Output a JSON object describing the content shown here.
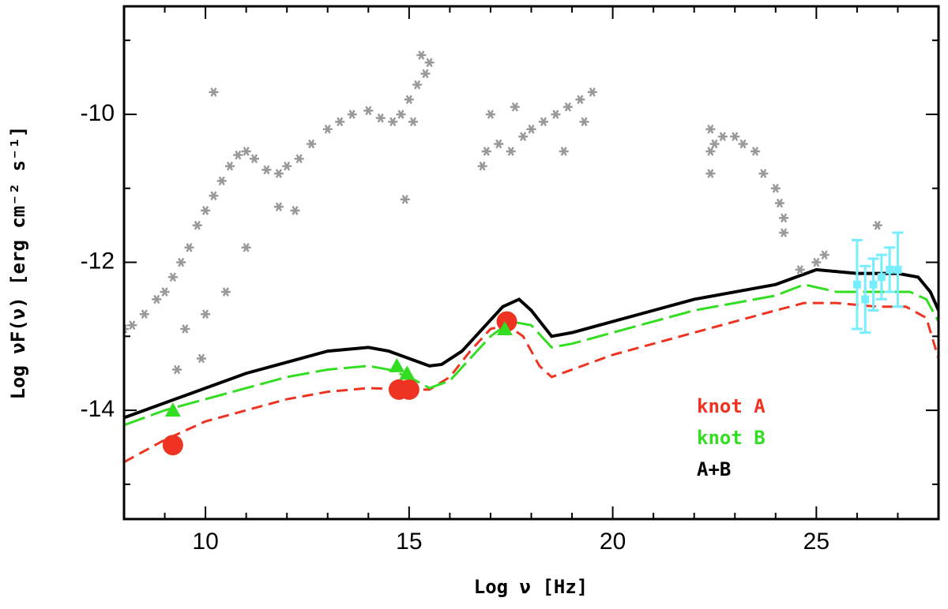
{
  "chart_data": {
    "type": "scatter",
    "xlabel": "Log ν [Hz]",
    "ylabel": "Log νF(ν) [erg cm⁻² s⁻¹]",
    "xlim": [
      8,
      28
    ],
    "ylim": [
      -15.47,
      -8.54
    ],
    "xticks": [
      10,
      15,
      20,
      25
    ],
    "yticks": [
      -14,
      -12,
      -10
    ],
    "xticks_minor": [
      9,
      11,
      12,
      13,
      14,
      16,
      17,
      18,
      19,
      21,
      22,
      23,
      24,
      26,
      27
    ],
    "yticks_minor": [
      -15,
      -13,
      -11,
      -9
    ],
    "legend": "lower right",
    "series": [
      {
        "name": "knot A",
        "color": "#ee3322",
        "style": "dashed",
        "x": [
          8,
          9,
          10,
          11,
          12,
          13,
          14,
          15,
          15.5,
          16,
          16.5,
          17,
          17.4,
          17.8,
          18.2,
          18.5,
          19,
          20,
          21,
          22,
          23,
          24,
          24.7,
          25.5,
          26.5,
          27.2,
          27.7,
          28
        ],
        "values": [
          -14.7,
          -14.4,
          -14.15,
          -14.0,
          -13.85,
          -13.75,
          -13.7,
          -13.72,
          -13.72,
          -13.55,
          -13.2,
          -12.9,
          -12.85,
          -13.0,
          -13.4,
          -13.55,
          -13.45,
          -13.25,
          -13.1,
          -12.95,
          -12.8,
          -12.65,
          -12.55,
          -12.55,
          -12.6,
          -12.6,
          -12.75,
          -13.3
        ]
      },
      {
        "name": "knot B",
        "color": "#33dd22",
        "style": "longdash",
        "x": [
          8,
          9,
          10,
          11,
          12,
          13,
          14,
          14.5,
          15,
          15.5,
          16,
          16.5,
          17,
          17.5,
          18,
          18.5,
          19,
          20,
          21,
          22,
          23,
          24,
          24.7,
          25.5,
          26.5,
          27.3,
          27.7,
          28
        ],
        "values": [
          -14.2,
          -14.0,
          -13.85,
          -13.7,
          -13.55,
          -13.45,
          -13.4,
          -13.45,
          -13.55,
          -13.7,
          -13.6,
          -13.3,
          -13.0,
          -12.8,
          -12.85,
          -13.15,
          -13.1,
          -12.95,
          -12.8,
          -12.65,
          -12.55,
          -12.45,
          -12.3,
          -12.4,
          -12.4,
          -12.4,
          -12.5,
          -12.8
        ]
      },
      {
        "name": "A+B",
        "color": "#000000",
        "style": "solid",
        "x": [
          8,
          9,
          10,
          11,
          12,
          13,
          14,
          14.5,
          15,
          15.5,
          15.8,
          16.3,
          16.8,
          17.3,
          17.7,
          18,
          18.5,
          19,
          20,
          21,
          22,
          23,
          24,
          24.5,
          25,
          26,
          27,
          27.5,
          27.8,
          28
        ],
        "values": [
          -14.1,
          -13.9,
          -13.7,
          -13.5,
          -13.35,
          -13.2,
          -13.15,
          -13.2,
          -13.3,
          -13.4,
          -13.38,
          -13.2,
          -12.9,
          -12.6,
          -12.5,
          -12.65,
          -13.0,
          -12.95,
          -12.8,
          -12.65,
          -12.5,
          -12.4,
          -12.3,
          -12.2,
          -12.1,
          -12.15,
          -12.15,
          -12.2,
          -12.4,
          -12.65
        ]
      },
      {
        "color": "#999999",
        "marker": "asterisk",
        "x": [
          8.0,
          8.2,
          8.5,
          8.8,
          9.0,
          9.2,
          9.4,
          9.6,
          9.8,
          10.0,
          10.2,
          10.4,
          10.6,
          10.8,
          11.0,
          11.2,
          11.5,
          11.8,
          12.0,
          12.3,
          12.6,
          13.0,
          13.3,
          13.6,
          14.0,
          14.3,
          14.6,
          14.8,
          15.0,
          15.2,
          15.4,
          15.5,
          15.3,
          9.5,
          9.9,
          10.5,
          10.2,
          11.8,
          12.2,
          11.0,
          14.9,
          15.1,
          9.3,
          10.0,
          16.9,
          17.2,
          17.5,
          17.8,
          18.0,
          18.3,
          18.6,
          18.9,
          19.2,
          19.5,
          17.0,
          17.6,
          18.8,
          19.3,
          16.8,
          22.4,
          22.4,
          22.4,
          22.5,
          22.7,
          23.0,
          23.2,
          23.5,
          23.7,
          24.0,
          24.2,
          24.2,
          24.1,
          25.0,
          25.2,
          24.6,
          26.5
        ],
        "values": [
          -12.9,
          -12.85,
          -12.7,
          -12.5,
          -12.4,
          -12.2,
          -12.0,
          -11.8,
          -11.5,
          -11.3,
          -11.1,
          -10.9,
          -10.7,
          -10.55,
          -10.5,
          -10.6,
          -10.75,
          -10.8,
          -10.7,
          -10.6,
          -10.4,
          -10.2,
          -10.1,
          -10.0,
          -9.95,
          -10.05,
          -10.1,
          -10.0,
          -9.8,
          -9.6,
          -9.45,
          -9.3,
          -9.2,
          -12.9,
          -13.3,
          -12.4,
          -9.7,
          -11.25,
          -11.3,
          -11.8,
          -11.15,
          -10.1,
          -13.45,
          -12.7,
          -10.5,
          -10.4,
          -10.5,
          -10.3,
          -10.2,
          -10.1,
          -10.0,
          -9.9,
          -9.8,
          -9.7,
          -10.0,
          -9.9,
          -10.5,
          -10.1,
          -10.7,
          -10.2,
          -10.5,
          -10.8,
          -10.4,
          -10.3,
          -10.3,
          -10.4,
          -10.5,
          -10.8,
          -11.0,
          -11.4,
          -11.6,
          -11.2,
          -12.0,
          -11.9,
          -12.1,
          -11.5
        ]
      },
      {
        "color": "#77eeff",
        "marker": "square",
        "x": [
          26.0,
          26.2,
          26.4,
          26.6,
          26.8,
          27.0
        ],
        "values": [
          -12.3,
          -12.5,
          -12.3,
          -12.2,
          -12.1,
          -12.1
        ],
        "errors": [
          0.6,
          0.45,
          0.35,
          0.3,
          0.3,
          0.5
        ]
      },
      {
        "color": "#ee3322",
        "marker": "circle",
        "x": [
          9.2,
          14.75,
          15.0,
          17.4
        ],
        "values": [
          -14.47,
          -13.72,
          -13.72,
          -12.8
        ]
      },
      {
        "color": "#33dd22",
        "marker": "triangle",
        "x": [
          9.2,
          14.7,
          14.95,
          17.35
        ],
        "values": [
          -14.0,
          -13.4,
          -13.5,
          -12.9
        ]
      }
    ]
  }
}
